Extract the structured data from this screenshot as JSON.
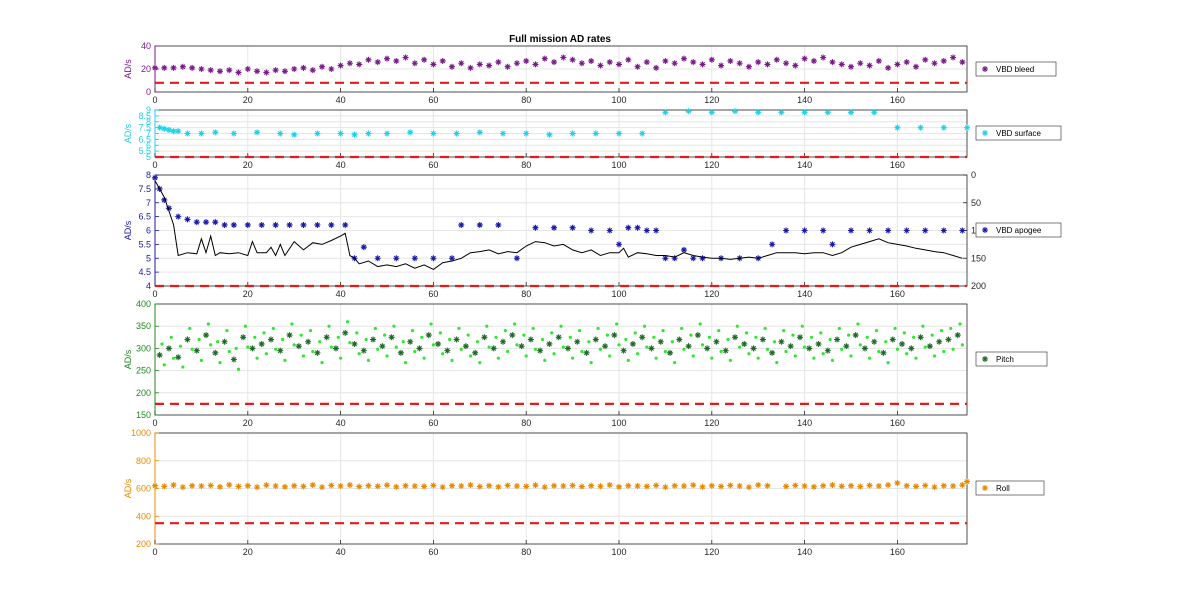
{
  "figure": {
    "title": "Full mission AD rates"
  },
  "chart_data": [
    {
      "type": "scatter",
      "name": "vbd-bleed",
      "ylabel": "AD/s",
      "xlim": [
        0,
        175
      ],
      "ylim": [
        0,
        40
      ],
      "yticks": [
        0,
        20,
        40
      ],
      "xticks": [
        0,
        20,
        40,
        60,
        80,
        100,
        120,
        140,
        160
      ],
      "color": "#7a1a8a",
      "threshold": 8,
      "threshold_color": "#e41a1c",
      "grid": true,
      "legend": "right",
      "series": [
        {
          "name": "VBD bleed",
          "marker": "*",
          "x": [
            0,
            2,
            4,
            6,
            8,
            10,
            12,
            14,
            16,
            18,
            20,
            22,
            24,
            26,
            28,
            30,
            32,
            34,
            36,
            38,
            40,
            42,
            44,
            46,
            48,
            50,
            52,
            54,
            56,
            58,
            60,
            62,
            64,
            66,
            68,
            70,
            72,
            74,
            76,
            78,
            80,
            82,
            84,
            86,
            88,
            90,
            92,
            94,
            96,
            98,
            100,
            102,
            104,
            106,
            108,
            110,
            112,
            114,
            116,
            118,
            120,
            122,
            124,
            126,
            128,
            130,
            132,
            134,
            136,
            138,
            140,
            142,
            144,
            146,
            148,
            150,
            152,
            154,
            156,
            158,
            160,
            162,
            164,
            166,
            168,
            170,
            172,
            174
          ],
          "y": [
            21,
            21,
            21,
            22,
            21,
            20,
            19,
            18,
            19,
            17,
            20,
            18,
            17,
            19,
            18,
            20,
            21,
            19,
            22,
            20,
            23,
            25,
            24,
            28,
            26,
            29,
            27,
            30,
            25,
            28,
            24,
            27,
            22,
            25,
            21,
            24,
            23,
            26,
            22,
            25,
            27,
            24,
            29,
            26,
            30,
            28,
            25,
            27,
            23,
            26,
            24,
            28,
            22,
            26,
            21,
            27,
            25,
            29,
            26,
            24,
            28,
            23,
            27,
            25,
            22,
            26,
            24,
            28,
            25,
            23,
            29,
            27,
            30,
            26,
            24,
            22,
            25,
            23,
            27,
            21,
            24,
            26,
            22,
            28,
            25,
            27,
            30,
            26
          ]
        }
      ]
    },
    {
      "type": "scatter",
      "name": "vbd-surface",
      "ylabel": "AD/s",
      "xlim": [
        0,
        175
      ],
      "ylim": [
        5,
        9
      ],
      "yticks": [
        5,
        5.5,
        6,
        6.5,
        7,
        7.5,
        8,
        8.5,
        9
      ],
      "xticks": [
        0,
        20,
        40,
        60,
        80,
        100,
        120,
        140,
        160
      ],
      "color": "#20d0e8",
      "threshold": 5,
      "threshold_color": "#e41a1c",
      "grid": true,
      "legend": "right",
      "series": [
        {
          "name": "VBD surface",
          "marker": "*",
          "x": [
            1,
            2,
            3,
            4,
            5,
            7,
            10,
            13,
            17,
            22,
            27,
            30,
            35,
            40,
            43,
            46,
            50,
            55,
            60,
            65,
            70,
            75,
            80,
            85,
            90,
            95,
            100,
            105,
            110,
            115,
            120,
            125,
            130,
            135,
            140,
            145,
            150,
            155,
            160,
            165,
            170,
            175
          ],
          "y": [
            7.5,
            7.4,
            7.3,
            7.2,
            7.2,
            7.0,
            7.0,
            7.1,
            7.0,
            7.1,
            7.0,
            6.9,
            7.0,
            7.0,
            6.9,
            7.0,
            7.0,
            7.1,
            7.0,
            7.0,
            7.1,
            7.0,
            7.0,
            6.9,
            7.0,
            7.0,
            7.0,
            7.0,
            8.8,
            8.9,
            8.8,
            8.9,
            8.8,
            8.8,
            8.8,
            8.8,
            8.8,
            8.8,
            7.5,
            7.5,
            7.5,
            7.5
          ]
        }
      ]
    },
    {
      "type": "scatter",
      "name": "vbd-apogee",
      "ylabel": "AD/s",
      "xlim": [
        0,
        175
      ],
      "ylim": [
        4,
        8
      ],
      "yticks": [
        4,
        4.5,
        5,
        5.5,
        6,
        6.5,
        7,
        7.5,
        8
      ],
      "y2lim": [
        200,
        0
      ],
      "y2ticks": [
        0,
        50,
        100,
        150,
        200
      ],
      "xticks": [
        0,
        20,
        40,
        60,
        80,
        100,
        120,
        140,
        160
      ],
      "color": "#1a1aaa",
      "threshold": 4,
      "threshold_color": "#e41a1c",
      "grid": true,
      "legend": "right",
      "series": [
        {
          "name": "VBD apogee",
          "marker": "*",
          "x": [
            0,
            1,
            2,
            3,
            5,
            7,
            9,
            11,
            13,
            15,
            17,
            20,
            23,
            26,
            29,
            32,
            35,
            38,
            41,
            43,
            45,
            48,
            52,
            56,
            60,
            64,
            66,
            70,
            74,
            78,
            82,
            86,
            90,
            94,
            98,
            100,
            102,
            104,
            106,
            108,
            110,
            112,
            114,
            116,
            118,
            122,
            126,
            130,
            133,
            136,
            140,
            144,
            146,
            150,
            154,
            158,
            162,
            166,
            170,
            174
          ],
          "y": [
            7.9,
            7.5,
            7.1,
            6.8,
            6.5,
            6.4,
            6.3,
            6.3,
            6.3,
            6.2,
            6.2,
            6.2,
            6.2,
            6.2,
            6.2,
            6.2,
            6.2,
            6.2,
            6.2,
            5.0,
            5.4,
            5.0,
            5.0,
            5.0,
            5.0,
            5.0,
            6.2,
            6.2,
            6.2,
            5.0,
            6.1,
            6.1,
            6.1,
            6.0,
            6.0,
            5.5,
            6.1,
            6.1,
            6.0,
            6.0,
            5.0,
            5.0,
            5.3,
            5.0,
            5.0,
            5.0,
            5.0,
            5.0,
            5.5,
            6.0,
            6.0,
            6.0,
            5.5,
            6.0,
            6.0,
            6.0,
            6.0,
            6.0,
            6.0,
            6.0
          ]
        },
        {
          "name": "",
          "type": "line",
          "axis": "right",
          "color": "#000000",
          "x": [
            0,
            2,
            4,
            5,
            7,
            9,
            10,
            11,
            12,
            13,
            14,
            16,
            18,
            20,
            21,
            22,
            24,
            25,
            26,
            27,
            28,
            30,
            32,
            34,
            36,
            38,
            40,
            41,
            42,
            43,
            44,
            46,
            48,
            50,
            52,
            54,
            56,
            58,
            60,
            62,
            64,
            66,
            68,
            70,
            72,
            74,
            76,
            78,
            80,
            82,
            84,
            86,
            88,
            90,
            92,
            94,
            96,
            98,
            100,
            101,
            102,
            104,
            106,
            108,
            110,
            112,
            114,
            116,
            118,
            120,
            122,
            124,
            126,
            128,
            130,
            132,
            134,
            136,
            138,
            140,
            142,
            144,
            146,
            148,
            150,
            152,
            154,
            156,
            158,
            160,
            162,
            164,
            166,
            168,
            170,
            172,
            174
          ],
          "y": [
            10,
            40,
            90,
            145,
            140,
            142,
            115,
            140,
            110,
            145,
            140,
            142,
            140,
            145,
            120,
            140,
            140,
            130,
            145,
            125,
            145,
            120,
            135,
            122,
            125,
            118,
            110,
            105,
            145,
            150,
            160,
            155,
            165,
            162,
            165,
            160,
            168,
            162,
            170,
            158,
            155,
            150,
            140,
            138,
            135,
            142,
            138,
            140,
            128,
            120,
            122,
            128,
            125,
            135,
            140,
            135,
            145,
            140,
            140,
            132,
            148,
            140,
            142,
            145,
            145,
            148,
            140,
            145,
            148,
            150,
            150,
            152,
            150,
            148,
            150,
            145,
            140,
            140,
            140,
            142,
            140,
            140,
            145,
            140,
            130,
            125,
            120,
            115,
            122,
            125,
            128,
            132,
            135,
            138,
            140,
            145,
            150
          ]
        }
      ]
    },
    {
      "type": "scatter",
      "name": "pitch",
      "ylabel": "AD/s",
      "xlim": [
        0,
        175
      ],
      "ylim": [
        150,
        400
      ],
      "yticks": [
        150,
        200,
        250,
        300,
        350,
        400
      ],
      "xticks": [
        0,
        20,
        40,
        60,
        80,
        100,
        120,
        140,
        160
      ],
      "color": "#1e8a1e",
      "threshold": 175,
      "threshold_color": "#e41a1c",
      "grid": true,
      "legend": "right",
      "series": [
        {
          "name": "Pitch",
          "marker": "*",
          "color": "#1f6a2a",
          "x": [
            1,
            3,
            5,
            7,
            9,
            11,
            13,
            15,
            17,
            19,
            21,
            23,
            25,
            27,
            29,
            31,
            33,
            35,
            37,
            39,
            41,
            43,
            45,
            47,
            49,
            51,
            53,
            55,
            57,
            59,
            61,
            63,
            65,
            67,
            69,
            71,
            73,
            75,
            77,
            79,
            81,
            83,
            85,
            87,
            89,
            91,
            93,
            95,
            97,
            99,
            101,
            103,
            105,
            107,
            109,
            111,
            113,
            115,
            117,
            119,
            121,
            123,
            125,
            127,
            129,
            131,
            133,
            135,
            137,
            139,
            141,
            143,
            145,
            147,
            149,
            151,
            153,
            155,
            157,
            159,
            161,
            163,
            165,
            167,
            169,
            171,
            173
          ],
          "y": [
            285,
            300,
            280,
            320,
            295,
            330,
            290,
            315,
            275,
            325,
            300,
            310,
            320,
            295,
            330,
            305,
            315,
            290,
            325,
            300,
            335,
            310,
            295,
            320,
            305,
            325,
            290,
            315,
            300,
            330,
            310,
            295,
            320,
            305,
            290,
            325,
            300,
            315,
            330,
            305,
            320,
            295,
            310,
            325,
            300,
            315,
            290,
            320,
            305,
            330,
            295,
            310,
            325,
            300,
            315,
            290,
            320,
            305,
            330,
            300,
            315,
            295,
            325,
            310,
            300,
            320,
            290,
            315,
            305,
            325,
            300,
            310,
            295,
            320,
            305,
            330,
            300,
            315,
            290,
            320,
            310,
            300,
            325,
            305,
            315,
            320,
            330
          ]
        }
      ]
    },
    {
      "type": "scatter",
      "name": "roll",
      "ylabel": "AD/s",
      "xlim": [
        0,
        175
      ],
      "ylim": [
        200,
        1000
      ],
      "yticks": [
        200,
        400,
        600,
        800,
        1000
      ],
      "xticks": [
        0,
        20,
        40,
        60,
        80,
        100,
        120,
        140,
        160
      ],
      "color": "#e88a00",
      "threshold": 350,
      "threshold_color": "#e41a1c",
      "grid": true,
      "legend": "right",
      "series": [
        {
          "name": "Roll",
          "marker": "*",
          "x": [
            0,
            2,
            4,
            6,
            8,
            10,
            12,
            14,
            16,
            18,
            20,
            22,
            24,
            26,
            28,
            30,
            32,
            34,
            36,
            38,
            40,
            42,
            44,
            46,
            48,
            50,
            52,
            54,
            56,
            58,
            60,
            62,
            64,
            66,
            68,
            70,
            72,
            74,
            76,
            78,
            80,
            82,
            84,
            86,
            88,
            90,
            92,
            94,
            96,
            98,
            100,
            102,
            104,
            106,
            108,
            110,
            112,
            114,
            116,
            118,
            120,
            122,
            124,
            126,
            128,
            130,
            132,
            136,
            138,
            140,
            142,
            144,
            146,
            148,
            150,
            152,
            154,
            156,
            158,
            160,
            162,
            164,
            166,
            168,
            170,
            172,
            174,
            175
          ],
          "y": [
            620,
            615,
            625,
            610,
            620,
            618,
            622,
            612,
            626,
            615,
            620,
            610,
            624,
            618,
            612,
            620,
            615,
            625,
            610,
            622,
            618,
            625,
            614,
            620,
            616,
            624,
            612,
            620,
            618,
            615,
            622,
            610,
            620,
            618,
            625,
            614,
            620,
            612,
            622,
            618,
            615,
            624,
            610,
            620,
            618,
            622,
            614,
            620,
            616,
            625,
            612,
            620,
            618,
            615,
            622,
            610,
            620,
            618,
            624,
            612,
            620,
            615,
            622,
            618,
            610,
            625,
            620,
            615,
            622,
            618,
            612,
            620,
            625,
            616,
            620,
            614,
            622,
            618,
            625,
            640,
            620,
            615,
            622,
            610,
            620,
            618,
            625,
            650
          ]
        }
      ]
    }
  ]
}
